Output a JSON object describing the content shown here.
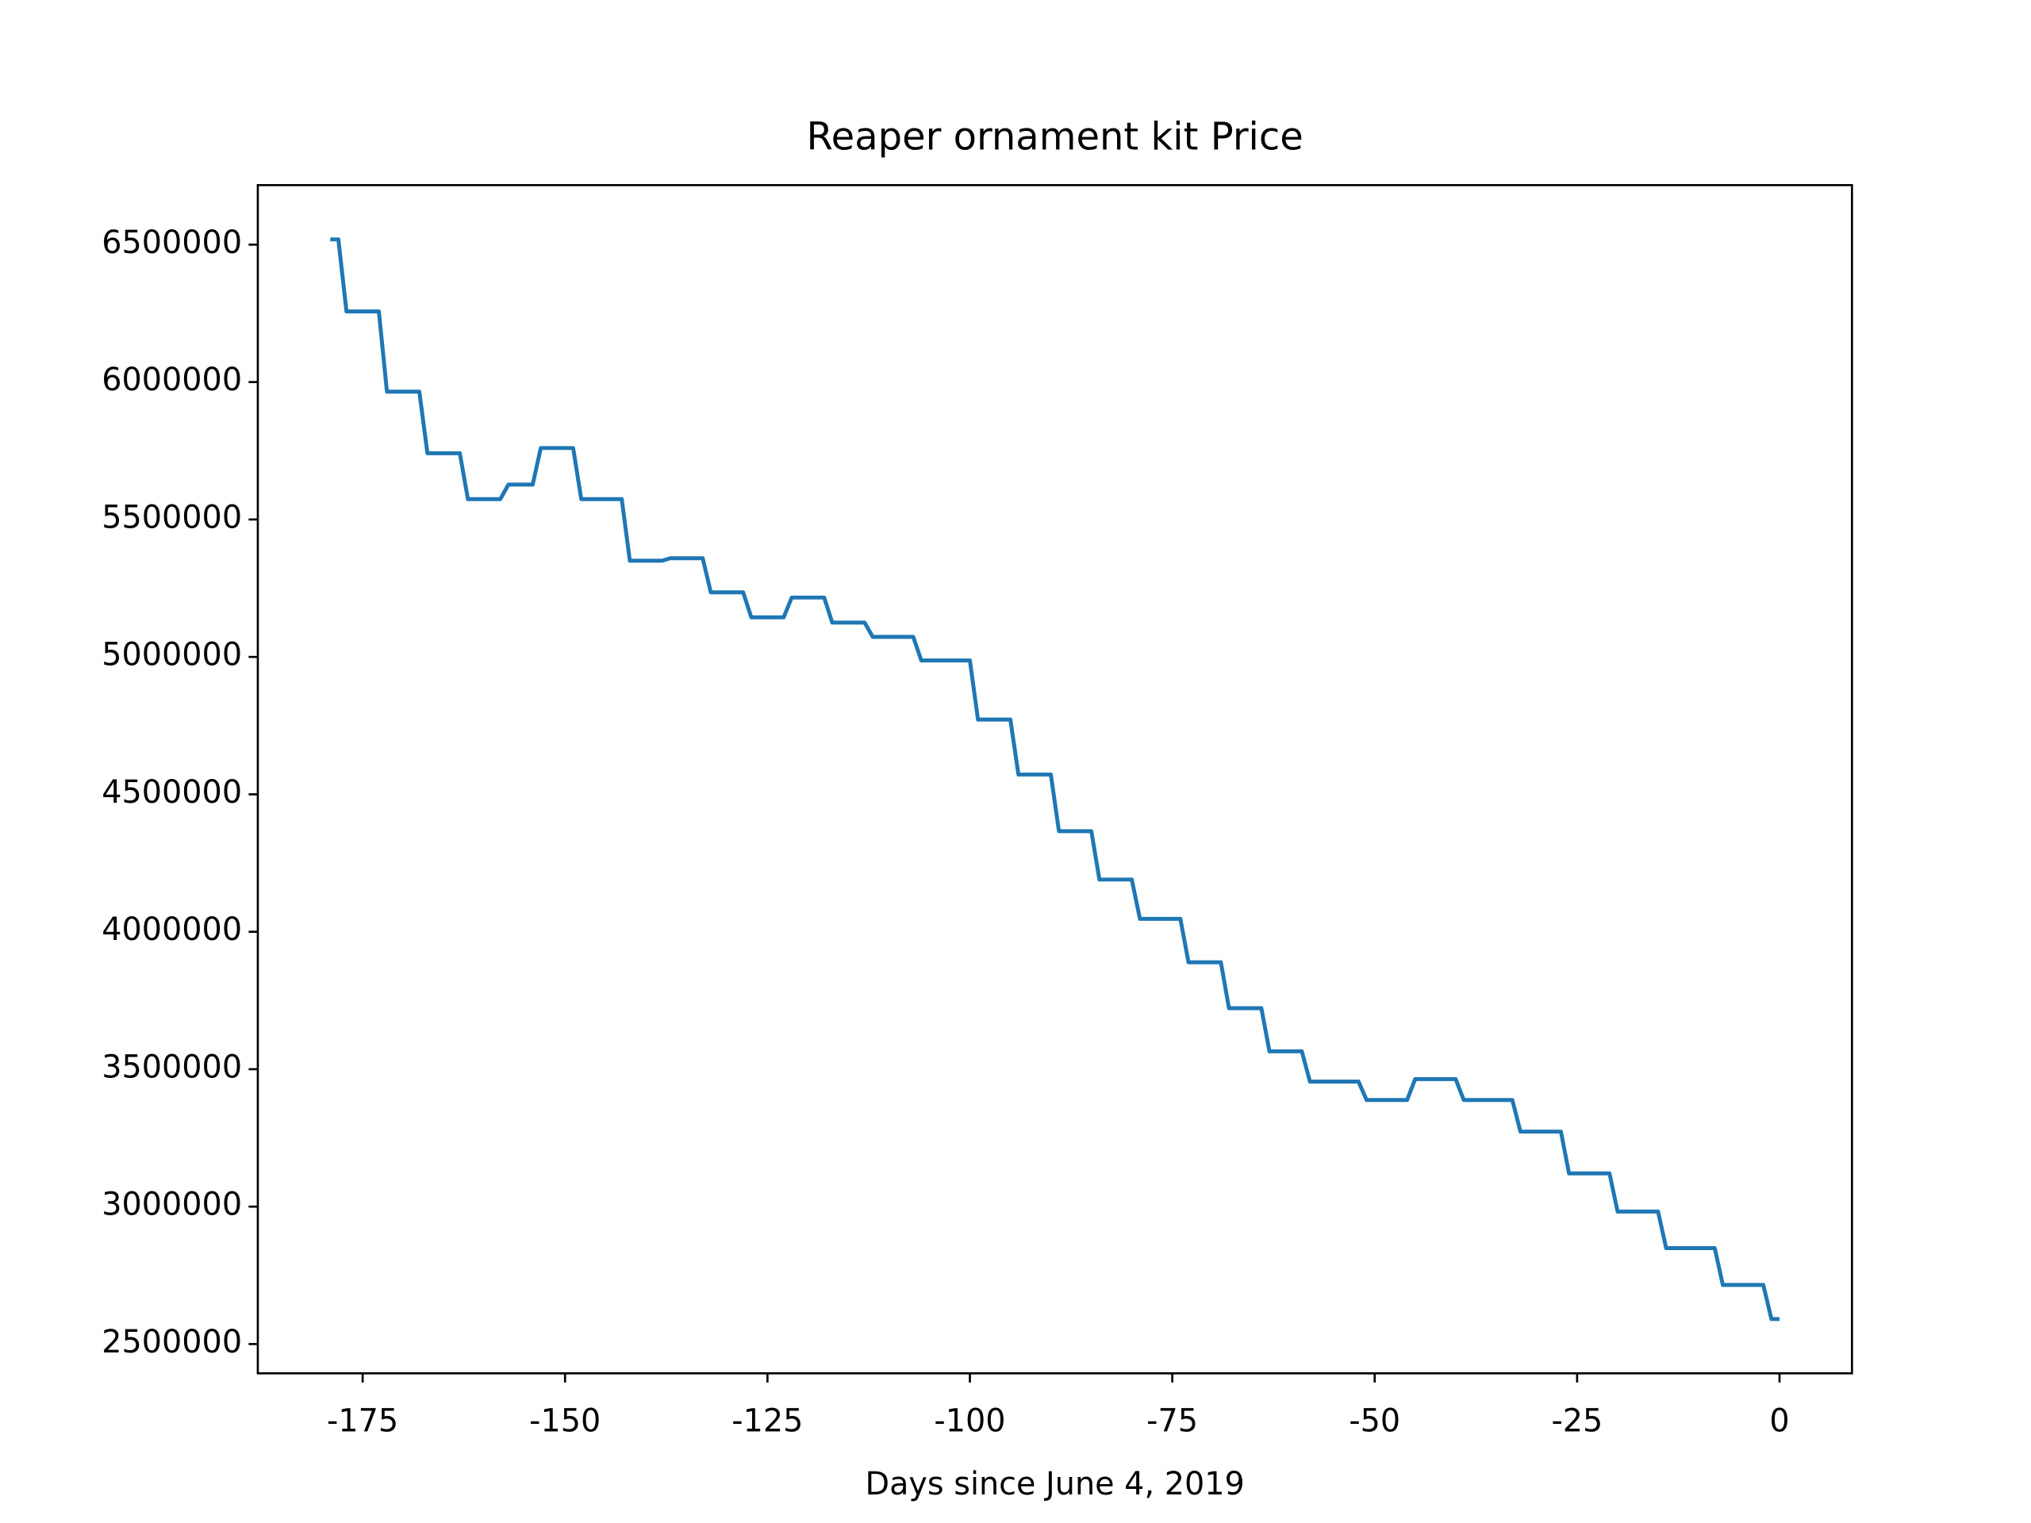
{
  "chart_data": {
    "type": "line",
    "title": "Reaper ornament kit Price",
    "x_label": "Days since June 4, 2019",
    "x": [
      -179,
      -178,
      -177,
      -173,
      -172,
      -168,
      -167,
      -163,
      -162,
      -158,
      -157,
      -154,
      -153,
      -149,
      -148,
      -143,
      -142,
      -138,
      -137,
      -133,
      -132,
      -128,
      -127,
      -123,
      -122,
      -118,
      -117,
      -113,
      -112,
      -107,
      -106,
      -100,
      -99,
      -95,
      -94,
      -90,
      -89,
      -85,
      -84,
      -80,
      -79,
      -74,
      -73,
      -69,
      -68,
      -64,
      -63,
      -59,
      -58,
      -52,
      -51,
      -46,
      -45,
      -40,
      -39,
      -33,
      -32,
      -27,
      -26,
      -21,
      -20,
      -15,
      -14,
      -8,
      -7,
      -2,
      -1,
      0
    ],
    "series": [
      {
        "color": "#1f77b4",
        "values": [
          6519000,
          6519000,
          6257000,
          6257000,
          5965000,
          5965000,
          5741000,
          5741000,
          5574000,
          5574000,
          5627000,
          5627000,
          5760000,
          5760000,
          5574000,
          5574000,
          5350000,
          5350000,
          5359000,
          5359000,
          5235000,
          5235000,
          5144000,
          5144000,
          5216000,
          5216000,
          5125000,
          5125000,
          5073000,
          5073000,
          4987000,
          4987000,
          4772000,
          4772000,
          4572000,
          4572000,
          4366000,
          4366000,
          4190000,
          4190000,
          4047000,
          4047000,
          3889000,
          3889000,
          3722000,
          3722000,
          3565000,
          3565000,
          3455000,
          3455000,
          3388000,
          3388000,
          3464000,
          3464000,
          3388000,
          3388000,
          3273000,
          3273000,
          3121000,
          3121000,
          2982000,
          2982000,
          2849000,
          2849000,
          2715000,
          2715000,
          2591000,
          2591000
        ]
      }
    ],
    "xlim": [
      -187.95,
      8.95
    ],
    "xticks": [
      -175,
      -150,
      -125,
      -100,
      -75,
      -50,
      -25,
      0
    ],
    "ylim": [
      2393500,
      6716500
    ],
    "yticks": [
      2500000,
      3000000,
      3500000,
      4000000,
      4500000,
      5000000,
      5500000,
      6000000,
      6500000
    ]
  }
}
